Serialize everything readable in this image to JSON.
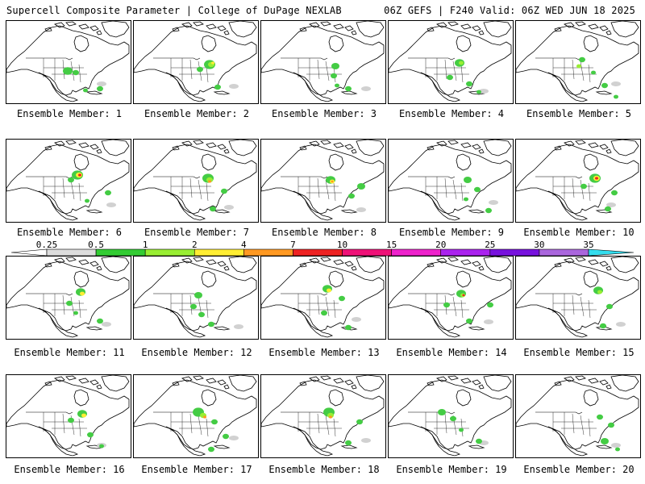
{
  "header": {
    "left": "Supercell Composite Parameter | College of DuPage NEXLAB",
    "right": "06Z GEFS | F240 Valid: 06Z WED JUN 18 2025"
  },
  "colorbar": {
    "levels": [
      "0.25",
      "0.5",
      "1",
      "2",
      "4",
      "7",
      "10",
      "15",
      "20",
      "25",
      "30",
      "35"
    ],
    "colors": [
      "#ffffff",
      "#dddddd",
      "#33cc33",
      "#99ee33",
      "#ffee33",
      "#ff9922",
      "#ee2222",
      "#ee1177",
      "#ee22cc",
      "#aa22ee",
      "#7711dd",
      "#aa66dd",
      "#33ddee"
    ]
  },
  "map_colors": {
    "low": "#cccccc",
    "green": "#44cc44",
    "lime": "#99ee33",
    "yellow": "#ffee33",
    "orange": "#ff9922",
    "red": "#ee2222",
    "land_outline": "#000000"
  },
  "members": [
    {
      "label": "Ensemble Member: 1"
    },
    {
      "label": "Ensemble Member: 2"
    },
    {
      "label": "Ensemble Member: 3"
    },
    {
      "label": "Ensemble Member: 4"
    },
    {
      "label": "Ensemble Member: 5"
    },
    {
      "label": "Ensemble Member: 6"
    },
    {
      "label": "Ensemble Member: 7"
    },
    {
      "label": "Ensemble Member: 8"
    },
    {
      "label": "Ensemble Member: 9"
    },
    {
      "label": "Ensemble Member: 10"
    },
    {
      "label": "Ensemble Member: 11"
    },
    {
      "label": "Ensemble Member: 12"
    },
    {
      "label": "Ensemble Member: 13"
    },
    {
      "label": "Ensemble Member: 14"
    },
    {
      "label": "Ensemble Member: 15"
    },
    {
      "label": "Ensemble Member: 16"
    },
    {
      "label": "Ensemble Member: 17"
    },
    {
      "label": "Ensemble Member: 18"
    },
    {
      "label": "Ensemble Member: 19"
    },
    {
      "label": "Ensemble Member: 20"
    }
  ]
}
